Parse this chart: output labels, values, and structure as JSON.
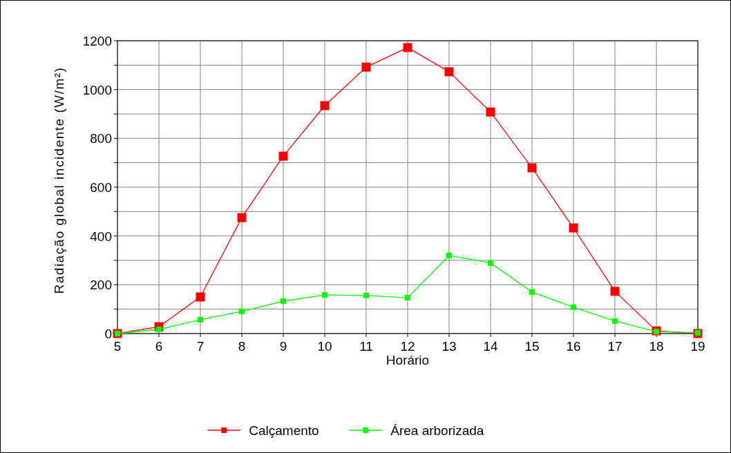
{
  "chart_data": {
    "type": "line",
    "xlabel": "Horário",
    "ylabel": "Radiação global incidente  (W/m²)",
    "x": [
      5,
      6,
      7,
      8,
      9,
      10,
      11,
      12,
      13,
      14,
      15,
      16,
      17,
      18,
      19
    ],
    "series": [
      {
        "name": "Calçamento",
        "color": "#ff0000",
        "values": [
          0,
          28,
          150,
          475,
          727,
          934,
          1092,
          1172,
          1073,
          908,
          679,
          433,
          173,
          11,
          0
        ]
      },
      {
        "name": "Área arborizada",
        "color": "#00ff00",
        "values": [
          0,
          17,
          57,
          91,
          133,
          158,
          156,
          147,
          320,
          289,
          170,
          108,
          51,
          8,
          3
        ]
      }
    ],
    "xlim": [
      5,
      19
    ],
    "xticks": [
      5,
      6,
      7,
      8,
      9,
      10,
      11,
      12,
      13,
      14,
      15,
      16,
      17,
      18,
      19
    ],
    "ylim": [
      0,
      1200
    ],
    "yticks": [
      0,
      {
        "value": 100,
        "label": null
      },
      200,
      {
        "value": 300,
        "label": null
      },
      400,
      {
        "value": 500,
        "label": null
      },
      600,
      {
        "value": 700,
        "label": null
      },
      800,
      {
        "value": 900,
        "label": null
      },
      1000,
      {
        "value": 1100,
        "label": null
      },
      1200
    ],
    "grid": true,
    "legend": "bottom",
    "marker": "square",
    "line_style": "solid"
  }
}
